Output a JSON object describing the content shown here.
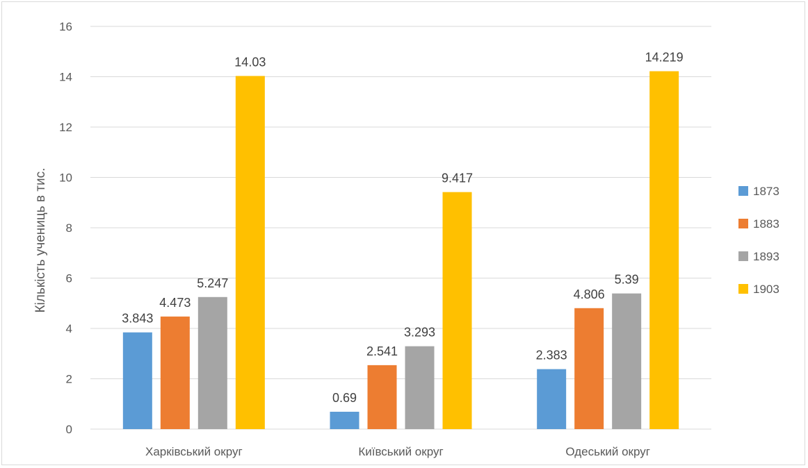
{
  "chart_data": {
    "type": "bar",
    "title": "",
    "xlabel": "",
    "ylabel": "Кількість учениць в тис.",
    "ylim": [
      0,
      16
    ],
    "yticks": [
      0,
      2,
      4,
      6,
      8,
      10,
      12,
      14,
      16
    ],
    "grid": true,
    "legend_position": "right",
    "categories": [
      "Харківський округ",
      "Київський округ",
      "Одеський округ"
    ],
    "series": [
      {
        "name": "1873",
        "color": "#5b9bd5",
        "values": [
          3.843,
          0.69,
          2.383
        ],
        "labels": [
          "3.843",
          "0.69",
          "2.383"
        ]
      },
      {
        "name": "1883",
        "color": "#ed7d31",
        "values": [
          4.473,
          2.541,
          4.806
        ],
        "labels": [
          "4.473",
          "2.541",
          "4.806"
        ]
      },
      {
        "name": "1893",
        "color": "#a5a5a5",
        "values": [
          5.247,
          3.293,
          5.39
        ],
        "labels": [
          "5.247",
          "3.293",
          "5.39"
        ]
      },
      {
        "name": "1903",
        "color": "#ffc000",
        "values": [
          14.03,
          9.417,
          14.219
        ],
        "labels": [
          "14.03",
          "9.417",
          "14.219"
        ]
      }
    ]
  }
}
